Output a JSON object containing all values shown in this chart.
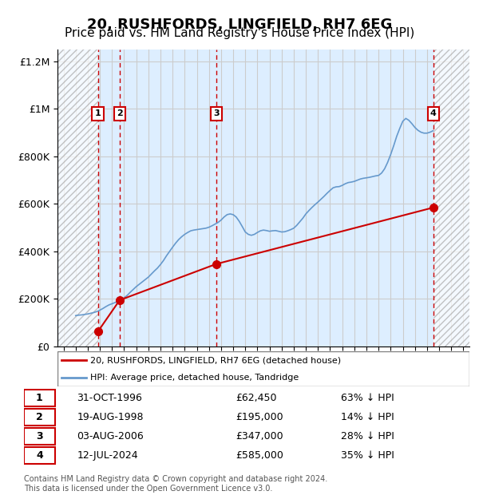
{
  "title": "20, RUSHFORDS, LINGFIELD, RH7 6EG",
  "subtitle": "Price paid vs. HM Land Registry's House Price Index (HPI)",
  "title_fontsize": 13,
  "subtitle_fontsize": 11,
  "ylabel": "",
  "xlabel": "",
  "ylim": [
    0,
    1250000
  ],
  "xlim_start": 1993.5,
  "xlim_end": 2027.5,
  "yticks": [
    0,
    200000,
    400000,
    600000,
    800000,
    1000000,
    1200000
  ],
  "ytick_labels": [
    "£0",
    "£200K",
    "£400K",
    "£600K",
    "£800K",
    "£1M",
    "£1.2M"
  ],
  "xticks": [
    1994,
    1995,
    1996,
    1997,
    1998,
    1999,
    2000,
    2001,
    2002,
    2003,
    2004,
    2005,
    2006,
    2007,
    2008,
    2009,
    2010,
    2011,
    2012,
    2013,
    2014,
    2015,
    2016,
    2017,
    2018,
    2019,
    2020,
    2021,
    2022,
    2023,
    2024,
    2025,
    2026,
    2027
  ],
  "transactions": [
    {
      "num": 1,
      "date": "31-OCT-1996",
      "year": 1996.83,
      "price": 62450,
      "label": "£62,450",
      "pct": "63% ↓ HPI"
    },
    {
      "num": 2,
      "date": "19-AUG-1998",
      "year": 1998.63,
      "price": 195000,
      "label": "£195,000",
      "pct": "14% ↓ HPI"
    },
    {
      "num": 3,
      "date": "03-AUG-2006",
      "year": 2006.59,
      "price": 347000,
      "label": "£347,000",
      "pct": "28% ↓ HPI"
    },
    {
      "num": 4,
      "date": "12-JUL-2024",
      "year": 2024.53,
      "price": 585000,
      "label": "£585,000",
      "pct": "35% ↓ HPI"
    }
  ],
  "hpi_color": "#6699cc",
  "sale_color": "#cc0000",
  "background_color": "#ddeeff",
  "hatch_color": "#bbbbcc",
  "grid_color": "#cccccc",
  "legend_line1": "20, RUSHFORDS, LINGFIELD, RH7 6EG (detached house)",
  "legend_line2": "HPI: Average price, detached house, Tandridge",
  "footer": "Contains HM Land Registry data © Crown copyright and database right 2024.\nThis data is licensed under the Open Government Licence v3.0.",
  "hpi_data_x": [
    1995.0,
    1995.25,
    1995.5,
    1995.75,
    1996.0,
    1996.25,
    1996.5,
    1996.75,
    1997.0,
    1997.25,
    1997.5,
    1997.75,
    1998.0,
    1998.25,
    1998.5,
    1998.75,
    1999.0,
    1999.25,
    1999.5,
    1999.75,
    2000.0,
    2000.25,
    2000.5,
    2000.75,
    2001.0,
    2001.25,
    2001.5,
    2001.75,
    2002.0,
    2002.25,
    2002.5,
    2002.75,
    2003.0,
    2003.25,
    2003.5,
    2003.75,
    2004.0,
    2004.25,
    2004.5,
    2004.75,
    2005.0,
    2005.25,
    2005.5,
    2005.75,
    2006.0,
    2006.25,
    2006.5,
    2006.75,
    2007.0,
    2007.25,
    2007.5,
    2007.75,
    2008.0,
    2008.25,
    2008.5,
    2008.75,
    2009.0,
    2009.25,
    2009.5,
    2009.75,
    2010.0,
    2010.25,
    2010.5,
    2010.75,
    2011.0,
    2011.25,
    2011.5,
    2011.75,
    2012.0,
    2012.25,
    2012.5,
    2012.75,
    2013.0,
    2013.25,
    2013.5,
    2013.75,
    2014.0,
    2014.25,
    2014.5,
    2014.75,
    2015.0,
    2015.25,
    2015.5,
    2015.75,
    2016.0,
    2016.25,
    2016.5,
    2016.75,
    2017.0,
    2017.25,
    2017.5,
    2017.75,
    2018.0,
    2018.25,
    2018.5,
    2018.75,
    2019.0,
    2019.25,
    2019.5,
    2019.75,
    2020.0,
    2020.25,
    2020.5,
    2020.75,
    2021.0,
    2021.25,
    2021.5,
    2021.75,
    2022.0,
    2022.25,
    2022.5,
    2022.75,
    2023.0,
    2023.25,
    2023.5,
    2023.75,
    2024.0,
    2024.25,
    2024.5
  ],
  "hpi_data_y": [
    130000,
    132000,
    133000,
    135000,
    137000,
    140000,
    143000,
    147000,
    153000,
    160000,
    168000,
    175000,
    180000,
    185000,
    190000,
    197000,
    205000,
    215000,
    228000,
    240000,
    252000,
    262000,
    272000,
    282000,
    292000,
    305000,
    318000,
    330000,
    345000,
    362000,
    382000,
    400000,
    418000,
    435000,
    450000,
    462000,
    472000,
    480000,
    487000,
    490000,
    492000,
    494000,
    496000,
    498000,
    502000,
    508000,
    515000,
    522000,
    532000,
    545000,
    555000,
    558000,
    555000,
    545000,
    527000,
    505000,
    482000,
    472000,
    468000,
    472000,
    480000,
    487000,
    490000,
    488000,
    485000,
    487000,
    488000,
    485000,
    482000,
    483000,
    487000,
    492000,
    498000,
    510000,
    525000,
    540000,
    558000,
    572000,
    585000,
    597000,
    608000,
    620000,
    632000,
    645000,
    657000,
    668000,
    672000,
    673000,
    678000,
    685000,
    690000,
    692000,
    695000,
    700000,
    705000,
    708000,
    710000,
    712000,
    715000,
    718000,
    720000,
    730000,
    748000,
    775000,
    808000,
    845000,
    885000,
    918000,
    948000,
    960000,
    952000,
    938000,
    922000,
    910000,
    902000,
    898000,
    898000,
    902000,
    908000
  ]
}
